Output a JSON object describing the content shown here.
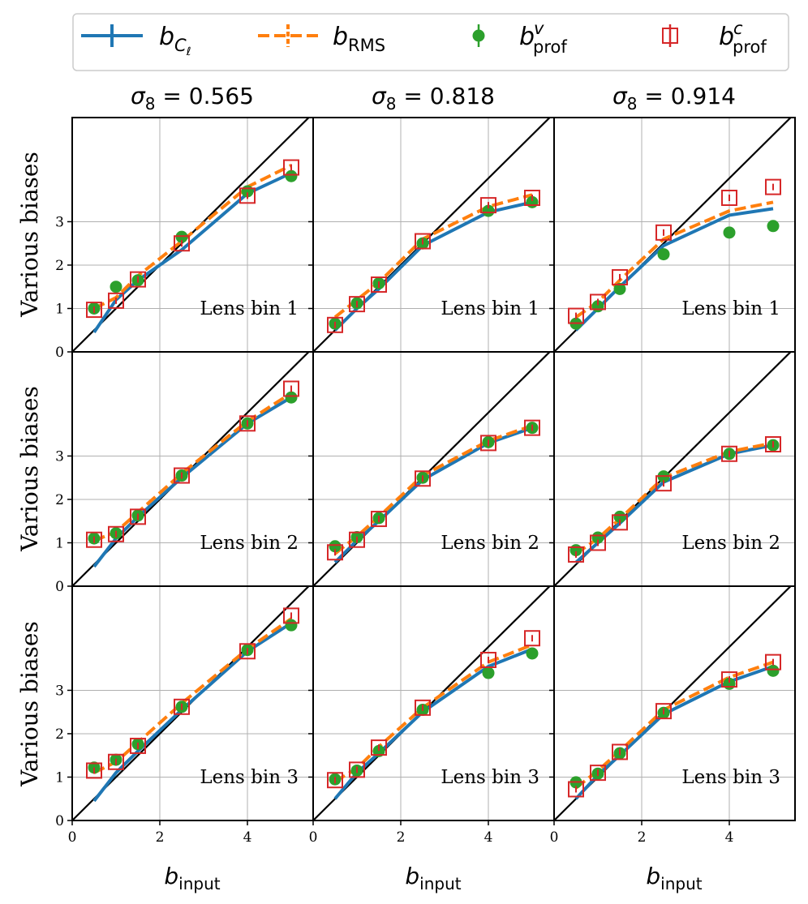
{
  "legend": {
    "entries": [
      {
        "main": "b",
        "sub": "C",
        "subsub": "ℓ",
        "sup": "",
        "color": "#1f77b4",
        "style": "line-solid"
      },
      {
        "main": "b",
        "sub": "RMS",
        "subsub": "",
        "sup": "",
        "color": "#ff7f0e",
        "style": "line-dashed"
      },
      {
        "main": "b",
        "sub": "prof",
        "subsub": "",
        "sup": "v",
        "color": "#2ca02c",
        "style": "dot"
      },
      {
        "main": "b",
        "sub": "prof",
        "subsub": "",
        "sup": "c",
        "color": "#d62728",
        "style": "open-square"
      }
    ]
  },
  "column_titles": [
    {
      "symbol": "σ",
      "sub": "8",
      "rest": " = 0.565"
    },
    {
      "symbol": "σ",
      "sub": "8",
      "rest": " = 0.818"
    },
    {
      "symbol": "σ",
      "sub": "8",
      "rest": " = 0.914"
    }
  ],
  "row_ylabel": "Various biases",
  "xlabel": {
    "main": "b",
    "sub": "input"
  },
  "colors": {
    "b_cl": "#1f77b4",
    "b_rms": "#ff7f0e",
    "b_prof_v": "#2ca02c",
    "b_prof_c": "#d62728",
    "identity": "#000000",
    "grid": "#b0b0b0"
  },
  "chart_data": {
    "type": "line",
    "layout": "3x3 grid of subplots (rows: lens bins, columns: sigma_8)",
    "x": [
      0.5,
      1.0,
      1.5,
      2.5,
      4.0,
      5.0
    ],
    "xlim": [
      0,
      5.5
    ],
    "ylim": [
      0,
      5.4
    ],
    "x_ticks": [
      0,
      2,
      4
    ],
    "y_ticks": [
      0,
      1,
      2,
      3
    ],
    "grid": true,
    "identity_line": true,
    "legend_position": "top, outside, single row",
    "panels": [
      {
        "row": 0,
        "col": 0,
        "label": "Lens bin 1",
        "b_cl": [
          0.45,
          1.2,
          1.65,
          2.35,
          3.65,
          4.12
        ],
        "b_rms": [
          1.0,
          1.25,
          1.75,
          2.55,
          3.8,
          4.3
        ],
        "b_prof_v": [
          1.0,
          1.5,
          1.65,
          2.65,
          3.7,
          4.05
        ],
        "b_prof_c": [
          0.97,
          1.18,
          1.67,
          2.5,
          3.6,
          4.25
        ]
      },
      {
        "row": 0,
        "col": 1,
        "label": "Lens bin 1",
        "b_cl": [
          0.5,
          1.0,
          1.45,
          2.45,
          3.22,
          3.45
        ],
        "b_rms": [
          0.8,
          1.2,
          1.6,
          2.6,
          3.35,
          3.62
        ],
        "b_prof_v": [
          0.65,
          1.12,
          1.58,
          2.5,
          3.25,
          3.45
        ],
        "b_prof_c": [
          0.62,
          1.1,
          1.55,
          2.55,
          3.38,
          3.55
        ]
      },
      {
        "row": 0,
        "col": 2,
        "label": "Lens bin 1",
        "b_cl": [
          0.5,
          1.0,
          1.5,
          2.45,
          3.15,
          3.3
        ],
        "b_rms": [
          0.8,
          1.15,
          1.65,
          2.6,
          3.25,
          3.45
        ],
        "b_prof_v": [
          0.65,
          1.05,
          1.45,
          2.25,
          2.75,
          2.9
        ],
        "b_prof_c": [
          0.83,
          1.15,
          1.72,
          2.75,
          3.55,
          3.8
        ]
      },
      {
        "row": 1,
        "col": 0,
        "label": "Lens bin 2",
        "b_cl": [
          0.45,
          1.1,
          1.6,
          2.5,
          3.75,
          4.35
        ],
        "b_rms": [
          1.05,
          1.25,
          1.7,
          2.6,
          3.8,
          4.45
        ],
        "b_prof_v": [
          1.1,
          1.22,
          1.63,
          2.55,
          3.75,
          4.35
        ],
        "b_prof_c": [
          1.07,
          1.2,
          1.6,
          2.55,
          3.75,
          4.55
        ]
      },
      {
        "row": 1,
        "col": 1,
        "label": "Lens bin 2",
        "b_cl": [
          0.55,
          1.05,
          1.5,
          2.45,
          3.3,
          3.65
        ],
        "b_rms": [
          0.75,
          1.15,
          1.6,
          2.55,
          3.35,
          3.7
        ],
        "b_prof_v": [
          0.92,
          1.13,
          1.57,
          2.5,
          3.32,
          3.65
        ],
        "b_prof_c": [
          0.78,
          1.07,
          1.55,
          2.48,
          3.3,
          3.65
        ]
      },
      {
        "row": 1,
        "col": 2,
        "label": "Lens bin 2",
        "b_cl": [
          0.55,
          1.0,
          1.45,
          2.4,
          3.05,
          3.25
        ],
        "b_rms": [
          0.75,
          1.1,
          1.55,
          2.5,
          3.1,
          3.3
        ],
        "b_prof_v": [
          0.83,
          1.12,
          1.6,
          2.53,
          3.05,
          3.25
        ],
        "b_prof_c": [
          0.73,
          1.0,
          1.47,
          2.37,
          3.05,
          3.27
        ]
      },
      {
        "row": 2,
        "col": 0,
        "label": "Lens bin 3",
        "b_cl": [
          0.45,
          1.1,
          1.6,
          2.55,
          3.9,
          4.55
        ],
        "b_rms": [
          1.1,
          1.35,
          1.8,
          2.7,
          3.95,
          4.65
        ],
        "b_prof_v": [
          1.22,
          1.4,
          1.76,
          2.62,
          3.93,
          4.5
        ],
        "b_prof_c": [
          1.15,
          1.35,
          1.72,
          2.62,
          3.9,
          4.72
        ]
      },
      {
        "row": 2,
        "col": 1,
        "label": "Lens bin 3",
        "b_cl": [
          0.5,
          1.1,
          1.55,
          2.5,
          3.55,
          3.95
        ],
        "b_rms": [
          0.9,
          1.2,
          1.7,
          2.6,
          3.65,
          4.05
        ],
        "b_prof_v": [
          0.95,
          1.15,
          1.6,
          2.55,
          3.4,
          3.85
        ],
        "b_prof_c": [
          0.93,
          1.17,
          1.68,
          2.6,
          3.7,
          4.2
        ]
      },
      {
        "row": 2,
        "col": 2,
        "label": "Lens bin 3",
        "b_cl": [
          0.5,
          1.05,
          1.5,
          2.45,
          3.2,
          3.55
        ],
        "b_rms": [
          0.75,
          1.15,
          1.6,
          2.55,
          3.3,
          3.65
        ],
        "b_prof_v": [
          0.88,
          1.08,
          1.55,
          2.48,
          3.15,
          3.45
        ],
        "b_prof_c": [
          0.72,
          1.1,
          1.58,
          2.52,
          3.25,
          3.65
        ]
      }
    ]
  }
}
